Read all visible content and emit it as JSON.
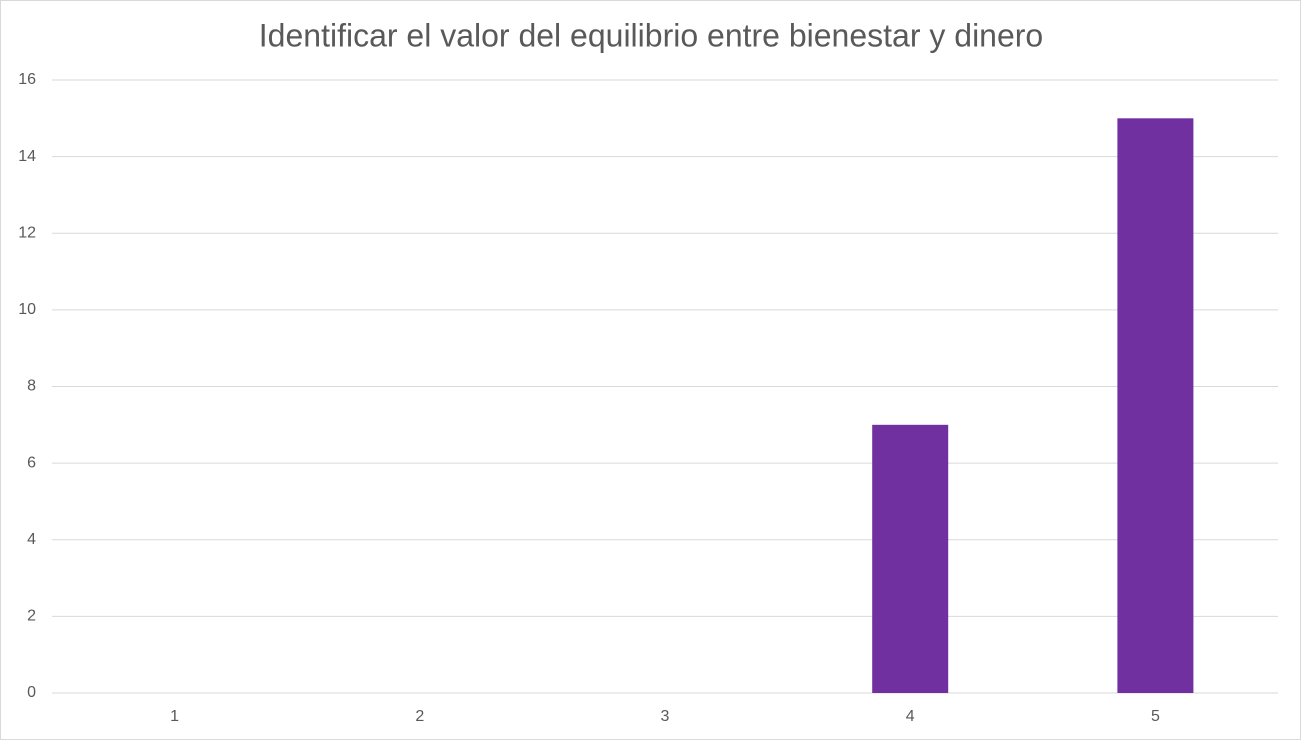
{
  "chart_data": {
    "type": "bar",
    "title": "Identificar el valor del equilibrio entre bienestar y dinero",
    "categories": [
      "1",
      "2",
      "3",
      "4",
      "5"
    ],
    "values": [
      0,
      0,
      0,
      7,
      15
    ],
    "color": "#7030a0",
    "ylim": [
      0,
      16
    ],
    "yticks": [
      0,
      2,
      4,
      6,
      8,
      10,
      12,
      14,
      16
    ],
    "grid": true
  }
}
